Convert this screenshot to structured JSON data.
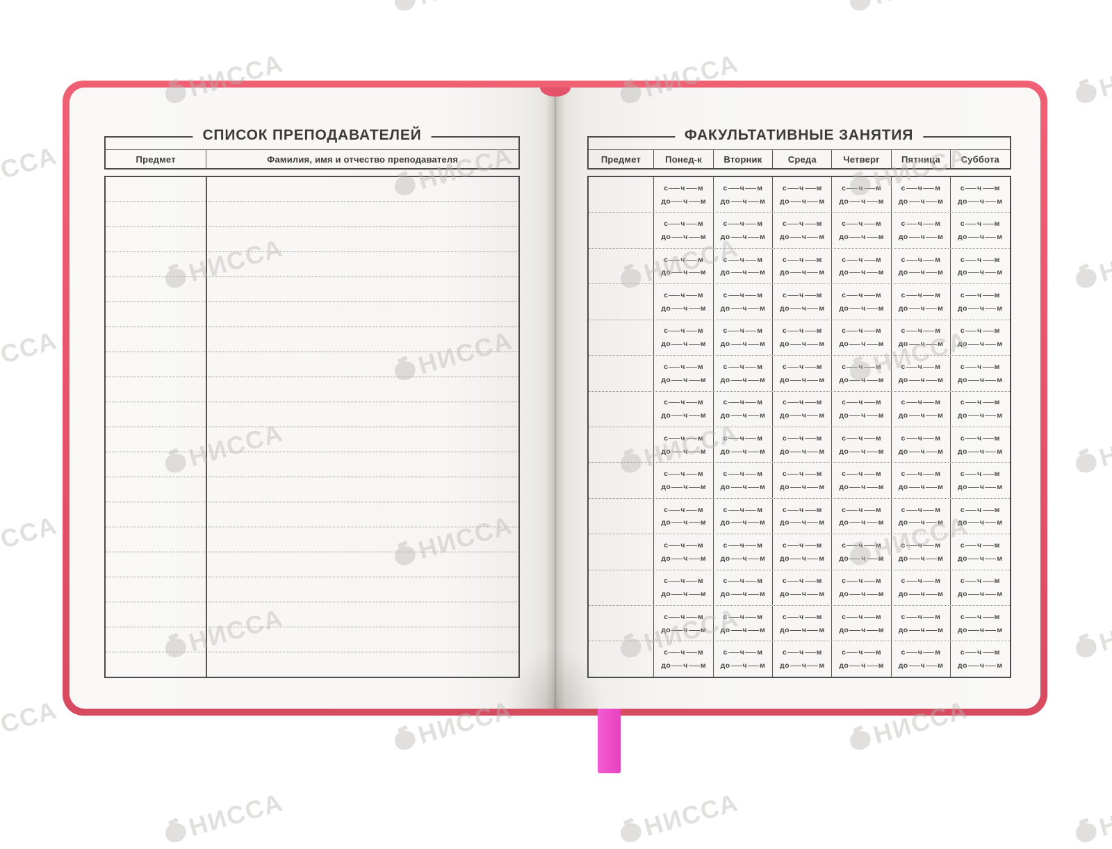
{
  "brand_watermark": {
    "text": "НИССА"
  },
  "left_page": {
    "title": "СПИСОК ПРЕПОДАВАТЕЛЕЙ",
    "columns": [
      "Предмет",
      "Фамилия, имя и отчество преподавателя"
    ],
    "row_count": 20
  },
  "right_page": {
    "title": "ФАКУЛЬТАТИВНЫЕ ЗАНЯТИЯ",
    "subject_column": "Предмет",
    "day_columns": [
      "Понед-к",
      "Вторник",
      "Среда",
      "Четверг",
      "Пятница",
      "Суббота"
    ],
    "row_count": 14,
    "time_from": {
      "prefix": "с",
      "hours": "ч",
      "minutes": "м"
    },
    "time_to": {
      "prefix": "до",
      "hours": "ч",
      "minutes": "м"
    }
  },
  "colors": {
    "cover": "#e4536a",
    "ribbon": "#ee4fc8",
    "watermark": "#b9b7b4"
  }
}
